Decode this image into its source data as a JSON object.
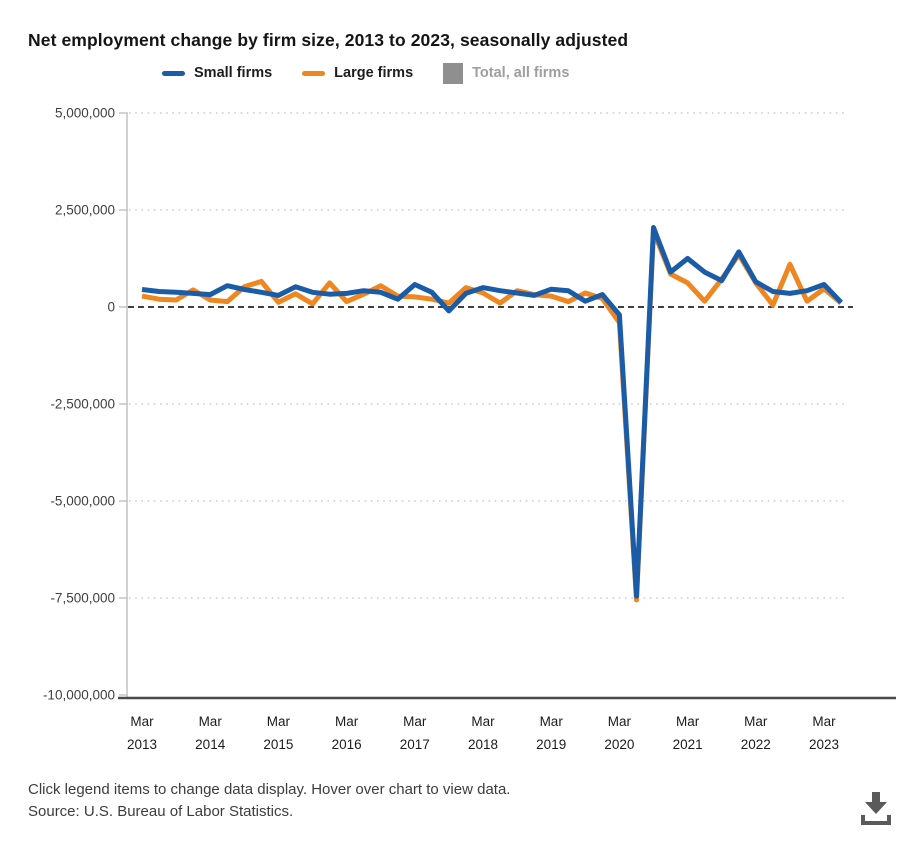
{
  "title": "Net employment change by firm size, 2013 to 2023, seasonally adjusted",
  "legend": {
    "items": [
      {
        "label": "Small firms",
        "color": "#1a5ca8",
        "swatch": "line",
        "enabled": true
      },
      {
        "label": "Large firms",
        "color": "#f0861f",
        "swatch": "line",
        "enabled": true
      },
      {
        "label": "Total, all firms",
        "color": "#8f8f8f",
        "swatch": "square",
        "enabled": false
      }
    ]
  },
  "footer": {
    "note": "Click legend items to change data display. Hover over chart to view data.",
    "source": "Source: U.S. Bureau of Labor Statistics.",
    "download_icon_color": "#5a5a5a"
  },
  "chart_data": {
    "type": "line",
    "title": "Net employment change by firm size, 2013 to 2023, seasonally adjusted",
    "xlabel": "",
    "ylabel": "",
    "ylim": [
      -10000000,
      5000000
    ],
    "grid": "dotted horizontal gridlines, dashed black zero line",
    "legend_position": "top",
    "x": [
      "Mar 2013",
      "Jun 2013",
      "Sep 2013",
      "Dec 2013",
      "Mar 2014",
      "Jun 2014",
      "Sep 2014",
      "Dec 2014",
      "Mar 2015",
      "Jun 2015",
      "Sep 2015",
      "Dec 2015",
      "Mar 2016",
      "Jun 2016",
      "Sep 2016",
      "Dec 2016",
      "Mar 2017",
      "Jun 2017",
      "Sep 2017",
      "Dec 2017",
      "Mar 2018",
      "Jun 2018",
      "Sep 2018",
      "Dec 2018",
      "Mar 2019",
      "Jun 2019",
      "Sep 2019",
      "Dec 2019",
      "Mar 2020",
      "Jun 2020",
      "Sep 2020",
      "Dec 2020",
      "Mar 2021",
      "Jun 2021",
      "Sep 2021",
      "Dec 2021",
      "Mar 2022",
      "Jun 2022",
      "Sep 2022",
      "Dec 2022",
      "Mar 2023",
      "Jun 2023"
    ],
    "x_tick_labels": [
      {
        "month": "Mar",
        "year": "2013"
      },
      {
        "month": "Mar",
        "year": "2014"
      },
      {
        "month": "Mar",
        "year": "2015"
      },
      {
        "month": "Mar",
        "year": "2016"
      },
      {
        "month": "Mar",
        "year": "2017"
      },
      {
        "month": "Mar",
        "year": "2018"
      },
      {
        "month": "Mar",
        "year": "2019"
      },
      {
        "month": "Mar",
        "year": "2020"
      },
      {
        "month": "Mar",
        "year": "2021"
      },
      {
        "month": "Mar",
        "year": "2022"
      },
      {
        "month": "Mar",
        "year": "2023"
      }
    ],
    "yticks": [
      {
        "value": 5000000,
        "label": "5,000,000"
      },
      {
        "value": 2500000,
        "label": "2,500,000"
      },
      {
        "value": 0,
        "label": "0"
      },
      {
        "value": -2500000,
        "label": "-2,500,000"
      },
      {
        "value": -5000000,
        "label": "-5,000,000"
      },
      {
        "value": -7500000,
        "label": "-7,500,000"
      },
      {
        "value": -10000000,
        "label": "-10,000,000"
      }
    ],
    "series": [
      {
        "name": "Small firms",
        "color": "#1a5ca8",
        "values": [
          450000,
          400000,
          380000,
          350000,
          320000,
          550000,
          450000,
          380000,
          300000,
          520000,
          380000,
          330000,
          350000,
          420000,
          380000,
          200000,
          580000,
          380000,
          -100000,
          350000,
          500000,
          420000,
          360000,
          300000,
          460000,
          420000,
          150000,
          320000,
          -200000,
          -7450000,
          2050000,
          900000,
          1250000,
          900000,
          680000,
          1420000,
          650000,
          400000,
          350000,
          420000,
          580000,
          120000
        ]
      },
      {
        "name": "Large firms",
        "color": "#f0861f",
        "values": [
          280000,
          200000,
          180000,
          440000,
          180000,
          140000,
          520000,
          660000,
          120000,
          340000,
          80000,
          620000,
          140000,
          330000,
          550000,
          280000,
          260000,
          200000,
          100000,
          500000,
          360000,
          100000,
          420000,
          320000,
          280000,
          140000,
          360000,
          220000,
          -400000,
          -7550000,
          1950000,
          850000,
          620000,
          150000,
          720000,
          1350000,
          620000,
          50000,
          1100000,
          150000,
          470000,
          100000
        ]
      },
      {
        "name": "Total, all firms",
        "color": "#8f8f8f",
        "hidden": true,
        "values": []
      }
    ]
  }
}
